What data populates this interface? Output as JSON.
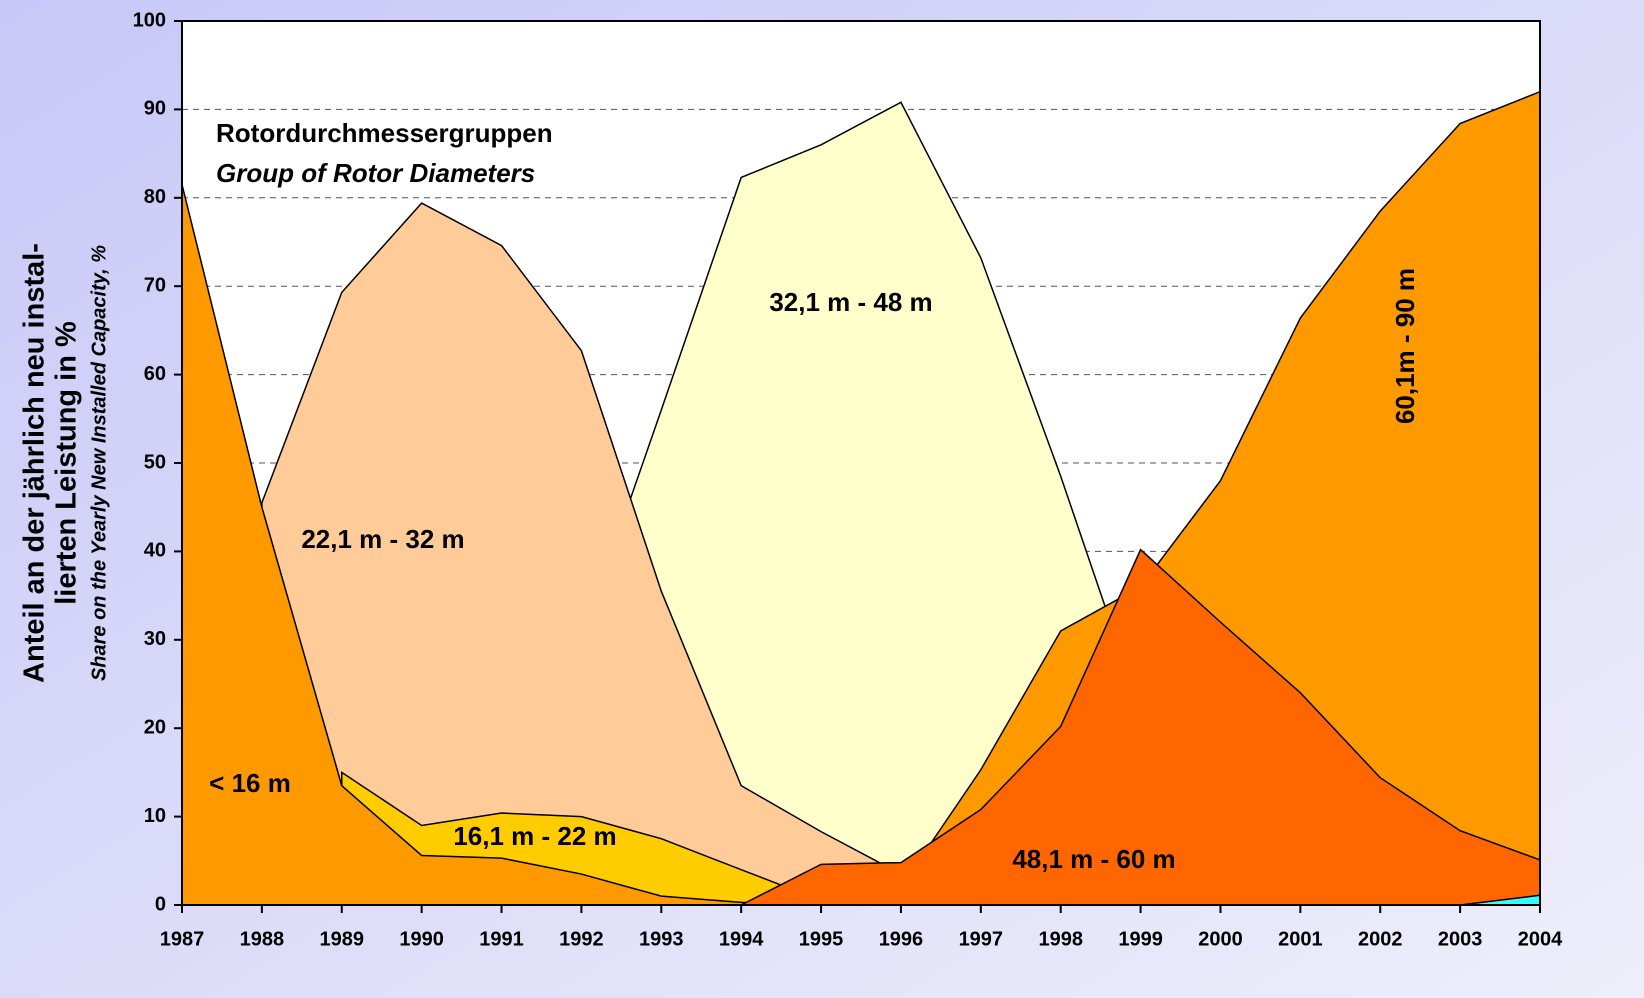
{
  "chart_data": {
    "type": "area",
    "title": "Rotordurchmessergruppen",
    "subtitle": "Group of Rotor Diameters",
    "y_label": [
      "Anteil an der jährlich neu instal-",
      "lierten Leistung in %"
    ],
    "y_label_en": "Share on the Yearly New Installed Capacity, %",
    "categories": [
      "1987",
      "1988",
      "1989",
      "1990",
      "1991",
      "1992",
      "1993",
      "1994",
      "1995",
      "1996",
      "1997",
      "1998",
      "1999",
      "2000",
      "2001",
      "2002",
      "2003",
      "2004"
    ],
    "series": [
      {
        "name": "32,1 m - 48 m",
        "color": "#ffffcc",
        "values": [
          null,
          null,
          null,
          null,
          null,
          30,
          56,
          82.3,
          86,
          90.8,
          73.2,
          48.5,
          22,
          null,
          null,
          null,
          null,
          null
        ]
      },
      {
        "name": "22,1 m -  32 m",
        "color": "#ffcc99",
        "values": [
          null,
          45.5,
          69.3,
          79.4,
          74.6,
          62.7,
          35.5,
          13.5,
          8.3,
          3.5,
          null,
          null,
          null,
          null,
          null,
          null,
          null,
          null
        ]
      },
      {
        "name": "16,1 m - 22 m",
        "color": "#ffcc00",
        "values": [
          null,
          null,
          15,
          9,
          10.4,
          10,
          7.5,
          4,
          0.5,
          null,
          null,
          null,
          null,
          null,
          null,
          null,
          null,
          null
        ]
      },
      {
        "name": "< 16 m",
        "color": "#ff9900",
        "values": [
          81.5,
          45,
          13.5,
          5.6,
          5.3,
          3.5,
          1,
          0.3,
          0,
          null,
          null,
          null,
          null,
          null,
          null,
          null,
          null,
          null
        ]
      },
      {
        "name": "60,1m - 90 m",
        "color": "#ff9900",
        "values": [
          null,
          null,
          null,
          null,
          null,
          null,
          null,
          null,
          0,
          2,
          15.3,
          31,
          36,
          48,
          66.4,
          78.5,
          88.4,
          92
        ]
      },
      {
        "name": "48,1 m - 60 m",
        "color": "#ff6600",
        "values": [
          null,
          null,
          null,
          null,
          null,
          null,
          null,
          0,
          4.6,
          4.8,
          10.8,
          20.2,
          40.2,
          32,
          24,
          14.4,
          8.4,
          5.1
        ]
      },
      {
        "color": "#33ffff",
        "values": [
          null,
          null,
          null,
          null,
          null,
          null,
          null,
          null,
          null,
          null,
          null,
          null,
          null,
          null,
          null,
          null,
          0,
          1.1
        ]
      }
    ],
    "ylim": [
      0,
      100
    ],
    "yticks": [
      0,
      10,
      20,
      30,
      40,
      50,
      60,
      70,
      80,
      90,
      100
    ],
    "grid": true
  }
}
